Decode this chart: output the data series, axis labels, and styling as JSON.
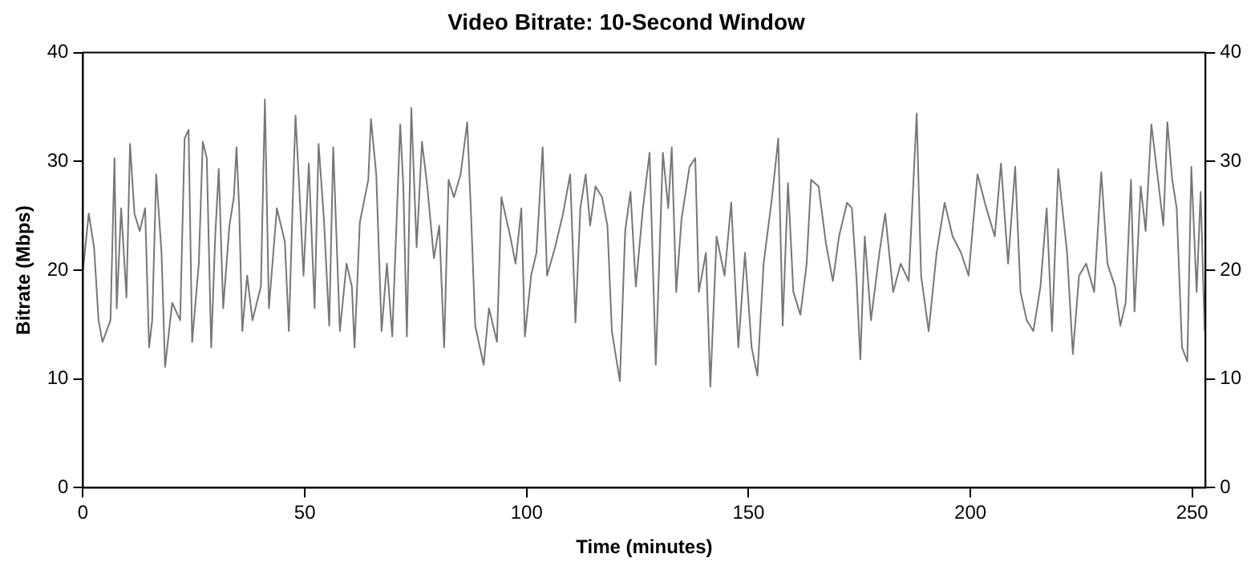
{
  "chart_data": {
    "type": "line",
    "title": "Video Bitrate: 10-Second Window",
    "xlabel": "Time (minutes)",
    "ylabel": "Bitrate (Mbps)",
    "xlim": [
      0,
      253
    ],
    "xticks": [
      0,
      50,
      100,
      150,
      200,
      250
    ],
    "ylim": [
      0,
      40
    ],
    "yticks": [
      0,
      10,
      20,
      30,
      40
    ],
    "y2lim": [
      0,
      40
    ],
    "y2ticks": [
      0,
      10,
      20,
      30,
      40
    ],
    "grid": false,
    "legend": false,
    "marker": "none",
    "line_style": "solid",
    "series": [
      {
        "color": "#777777",
        "x": [
          0,
          1.3,
          2.5,
          3.5,
          4.4,
          6.2,
          7.1,
          7.6,
          8.6,
          9.8,
          10.6,
          11.6,
          12.8,
          14.0,
          14.9,
          15.6,
          16.5,
          17.7,
          18.5,
          20.1,
          21.9,
          22.9,
          23.8,
          24.6,
          26.1,
          27.0,
          27.9,
          28.9,
          29.8,
          30.6,
          31.6,
          33.0,
          34.0,
          34.6,
          35.2,
          35.9,
          37.0,
          38.2,
          40.1,
          41.0,
          41.9,
          43.7,
          45.5,
          46.4,
          47.3,
          47.9,
          48.8,
          49.7,
          50.9,
          52.2,
          53.1,
          54.3,
          55.5,
          56.4,
          57.9,
          59.4,
          60.6,
          61.2,
          62.4,
          64.3,
          64.9,
          66.1,
          67.3,
          68.5,
          69.7,
          71.5,
          72.2,
          73.0,
          74.0,
          75.2,
          76.4,
          77.6,
          79.1,
          80.3,
          81.4,
          82.4,
          83.6,
          85.1,
          86.6,
          87.5,
          88.4,
          90.3,
          91.5,
          93.3,
          94.3,
          96.3,
          97.5,
          98.8,
          99.6,
          101.0,
          102.2,
          103.6,
          104.6,
          106.4,
          108.2,
          109.8,
          111.0,
          112.1,
          113.3,
          114.3,
          115.5,
          117.0,
          118.2,
          119.2,
          121.0,
          122.2,
          123.4,
          124.6,
          126.2,
          127.7,
          129.1,
          130.7,
          131.9,
          132.7,
          133.7,
          134.9,
          136.7,
          138.0,
          138.8,
          140.4,
          141.4,
          142.8,
          144.6,
          146.1,
          147.7,
          149.2,
          150.7,
          152.0,
          153.4,
          155.3,
          156.7,
          157.7,
          158.9,
          160.1,
          161.7,
          163.1,
          164.1,
          165.8,
          167.4,
          169.0,
          170.4,
          172.2,
          173.3,
          174.3,
          175.2,
          176.2,
          177.6,
          179.5,
          180.8,
          182.6,
          184.3,
          186.1,
          187.9,
          188.9,
          190.6,
          192.4,
          194.2,
          196.0,
          197.9,
          199.6,
          201.6,
          203.6,
          205.5,
          206.9,
          208.5,
          210.1,
          211.3,
          212.7,
          214.2,
          215.8,
          217.2,
          218.4,
          219.8,
          221.8,
          223.1,
          224.5,
          226.1,
          227.9,
          229.5,
          230.9,
          232.6,
          233.8,
          235.0,
          236.2,
          237.0,
          238.4,
          239.5,
          240.8,
          242.3,
          243.5,
          244.4,
          245.5,
          246.5,
          247.7,
          248.9,
          249.8,
          251.0,
          251.9,
          252.8
        ],
        "values": [
          20.0,
          25.2,
          22.1,
          15.4,
          13.4,
          15.4,
          30.3,
          16.5,
          25.7,
          17.5,
          31.6,
          25.2,
          23.6,
          25.7,
          12.9,
          15.4,
          28.8,
          21.6,
          11.1,
          17.0,
          15.4,
          32.1,
          32.9,
          13.4,
          20.6,
          31.8,
          30.3,
          12.9,
          23.1,
          29.3,
          16.5,
          24.1,
          26.7,
          31.3,
          25.7,
          14.4,
          19.5,
          15.4,
          18.5,
          35.7,
          16.5,
          25.7,
          22.6,
          14.4,
          26.7,
          34.2,
          27.2,
          19.5,
          29.8,
          16.5,
          31.6,
          24.7,
          14.9,
          31.3,
          14.4,
          20.6,
          18.5,
          12.9,
          24.4,
          28.3,
          33.9,
          28.8,
          14.4,
          20.6,
          13.9,
          33.4,
          27.7,
          13.9,
          34.9,
          22.1,
          31.8,
          27.7,
          21.1,
          24.1,
          12.9,
          28.3,
          26.7,
          28.8,
          33.6,
          24.7,
          14.9,
          11.3,
          16.5,
          13.4,
          26.7,
          23.1,
          20.6,
          25.7,
          13.9,
          19.5,
          21.6,
          31.3,
          19.5,
          22.1,
          25.2,
          28.8,
          15.2,
          25.7,
          28.8,
          24.1,
          27.7,
          26.7,
          24.1,
          14.4,
          9.8,
          23.6,
          27.2,
          18.5,
          25.7,
          30.8,
          11.3,
          30.8,
          25.7,
          31.3,
          18.0,
          24.7,
          29.5,
          30.3,
          18.0,
          21.6,
          9.3,
          23.1,
          19.5,
          26.2,
          12.9,
          21.6,
          12.9,
          10.3,
          20.6,
          26.7,
          32.1,
          14.9,
          28.0,
          18.0,
          15.9,
          20.6,
          28.3,
          27.7,
          22.6,
          19.0,
          23.1,
          26.2,
          25.7,
          19.5,
          11.8,
          23.1,
          15.4,
          21.6,
          25.2,
          18.0,
          20.6,
          19.0,
          34.4,
          19.5,
          14.4,
          21.6,
          26.2,
          23.1,
          21.6,
          19.5,
          28.8,
          25.7,
          23.1,
          29.8,
          20.6,
          29.5,
          18.0,
          15.4,
          14.4,
          18.5,
          25.7,
          14.4,
          29.3,
          21.6,
          12.3,
          19.5,
          20.6,
          18.0,
          29.0,
          20.6,
          18.5,
          14.9,
          17.0,
          28.3,
          16.2,
          27.7,
          23.6,
          33.4,
          28.3,
          24.1,
          33.6,
          28.3,
          25.7,
          12.9,
          11.6,
          29.5,
          18.0,
          27.2,
          14.4
        ]
      }
    ]
  }
}
